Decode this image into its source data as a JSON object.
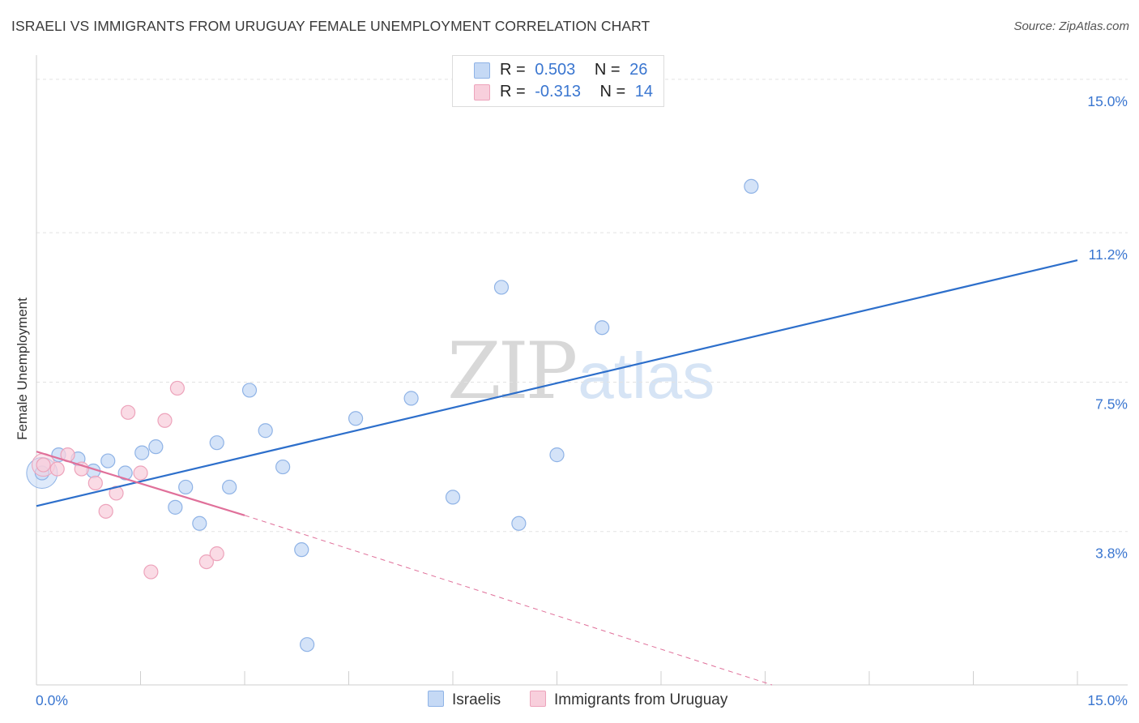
{
  "header": {
    "title": "ISRAELI VS IMMIGRANTS FROM URUGUAY FEMALE UNEMPLOYMENT CORRELATION CHART",
    "source": "Source: ZipAtlas.com"
  },
  "legend": {
    "rows": [
      {
        "r_label": "R =",
        "r_value": "0.503",
        "n_label": "N =",
        "n_value": "26"
      },
      {
        "r_label": "R =",
        "r_value": "-0.313",
        "n_label": "N =",
        "n_value": "14"
      }
    ]
  },
  "bottom_legend": {
    "israelis": "Israelis",
    "uruguay": "Immigrants from Uruguay"
  },
  "watermark": {
    "zip": "ZIP",
    "atlas": "atlas"
  },
  "colors": {
    "blue_fill": "#c5d9f5",
    "blue_stroke": "#8fb3e6",
    "blue_line": "#2d6fcb",
    "pink_fill": "#f8cfdc",
    "pink_stroke": "#eda3bb",
    "pink_line": "#e0709a",
    "axis_text": "#3a76d0",
    "grid": "#e3e3e3"
  },
  "chart_data": {
    "type": "scatter",
    "title": "ISRAELI VS IMMIGRANTS FROM URUGUAY FEMALE UNEMPLOYMENT CORRELATION CHART",
    "xlabel": "",
    "ylabel": "Female Unemployment",
    "xlim": [
      0,
      15
    ],
    "ylim": [
      0,
      15.4
    ],
    "x_tick_labels": [
      {
        "value": 0,
        "label": "0.0%"
      },
      {
        "value": 15,
        "label": "15.0%"
      }
    ],
    "y_tick_labels": [
      {
        "value": 3.8,
        "label": "3.8%"
      },
      {
        "value": 7.5,
        "label": "7.5%"
      },
      {
        "value": 11.2,
        "label": "11.2%"
      },
      {
        "value": 15.0,
        "label": "15.0%"
      }
    ],
    "series": [
      {
        "name": "Israelis",
        "color": "#8fb3e6",
        "points": [
          [
            0.08,
            5.25
          ],
          [
            0.32,
            5.7
          ],
          [
            0.6,
            5.6
          ],
          [
            0.82,
            5.3
          ],
          [
            1.03,
            5.55
          ],
          [
            1.28,
            5.25
          ],
          [
            1.52,
            5.75
          ],
          [
            1.72,
            5.9
          ],
          [
            2.0,
            4.4
          ],
          [
            2.15,
            4.9
          ],
          [
            2.35,
            4.0
          ],
          [
            2.6,
            6.0
          ],
          [
            2.78,
            4.9
          ],
          [
            3.07,
            7.3
          ],
          [
            3.3,
            6.3
          ],
          [
            3.55,
            5.4
          ],
          [
            3.82,
            3.35
          ],
          [
            3.9,
            1.0
          ],
          [
            4.6,
            6.6
          ],
          [
            5.4,
            7.1
          ],
          [
            6.0,
            4.65
          ],
          [
            6.7,
            9.85
          ],
          [
            6.95,
            4.0
          ],
          [
            7.5,
            5.7
          ],
          [
            8.15,
            8.85
          ],
          [
            10.3,
            12.35
          ]
        ],
        "trendline": {
          "x": [
            0,
            15
          ],
          "y": [
            4.43,
            10.52
          ]
        }
      },
      {
        "name": "Immigrants from Uruguay",
        "color": "#eda3bb",
        "points": [
          [
            0.1,
            5.45
          ],
          [
            0.3,
            5.35
          ],
          [
            0.45,
            5.7
          ],
          [
            0.65,
            5.35
          ],
          [
            0.85,
            5.0
          ],
          [
            1.0,
            4.3
          ],
          [
            1.15,
            4.75
          ],
          [
            1.32,
            6.75
          ],
          [
            1.5,
            5.25
          ],
          [
            1.65,
            2.8
          ],
          [
            1.85,
            6.55
          ],
          [
            2.03,
            7.35
          ],
          [
            2.45,
            3.05
          ],
          [
            2.6,
            3.25
          ]
        ],
        "trendline": {
          "x": [
            0,
            3.0
          ],
          "y": [
            5.78,
            4.2
          ]
        },
        "trendline_extension": {
          "x": [
            3.0,
            10.6
          ],
          "y": [
            4.2,
            0.0
          ]
        }
      }
    ]
  }
}
